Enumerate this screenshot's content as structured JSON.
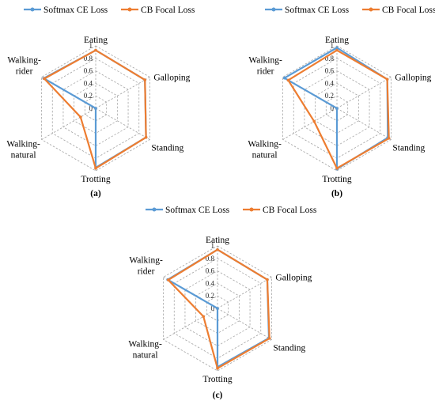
{
  "chart_data": [
    {
      "type": "radar",
      "panel_label": "(a)",
      "axes": [
        "Eating",
        "Galloping",
        "Standing",
        "Trotting",
        "Walking-natural",
        "Walking-rider"
      ],
      "ticks": [
        "0",
        "0.2",
        "0.4",
        "0.6",
        "0.8",
        "1"
      ],
      "rlim": [
        0,
        1
      ],
      "grid": true,
      "legend_position": "top",
      "series": [
        {
          "name": "Softmax CE Loss",
          "color": "#5b9bd5",
          "values": [
            0.93,
            0.91,
            0.93,
            0.95,
            0.0,
            0.96
          ]
        },
        {
          "name": "CB Focal Loss",
          "color": "#ed7d31",
          "values": [
            0.93,
            0.91,
            0.93,
            0.96,
            0.28,
            0.95
          ]
        }
      ]
    },
    {
      "type": "radar",
      "panel_label": "(b)",
      "axes": [
        "Eating",
        "Galloping",
        "Standing",
        "Trotting",
        "Walking-natural",
        "Walking-rider"
      ],
      "ticks": [
        "0",
        "0.2",
        "0.4",
        "0.6",
        "0.8",
        "1"
      ],
      "rlim": [
        0,
        1
      ],
      "grid": true,
      "legend_position": "top",
      "series": [
        {
          "name": "Softmax CE Loss",
          "color": "#5b9bd5",
          "values": [
            0.97,
            0.93,
            0.94,
            0.97,
            0.0,
            0.97
          ]
        },
        {
          "name": "CB Focal Loss",
          "color": "#ed7d31",
          "values": [
            0.93,
            0.93,
            0.96,
            0.96,
            0.42,
            0.9
          ]
        }
      ]
    },
    {
      "type": "radar",
      "panel_label": "(c)",
      "axes": [
        "Eating",
        "Galloping",
        "Standing",
        "Trotting",
        "Walking-natural",
        "Walking-rider"
      ],
      "ticks": [
        "0",
        "0.2",
        "0.4",
        "0.6",
        "0.8",
        "1"
      ],
      "rlim": [
        0,
        1
      ],
      "grid": true,
      "legend_position": "top",
      "series": [
        {
          "name": "Softmax CE Loss",
          "color": "#5b9bd5",
          "values": [
            0.94,
            0.92,
            0.95,
            0.94,
            0.0,
            0.92
          ]
        },
        {
          "name": "CB Focal Loss",
          "color": "#ed7d31",
          "values": [
            0.94,
            0.92,
            0.96,
            0.96,
            0.26,
            0.91
          ]
        }
      ]
    }
  ]
}
